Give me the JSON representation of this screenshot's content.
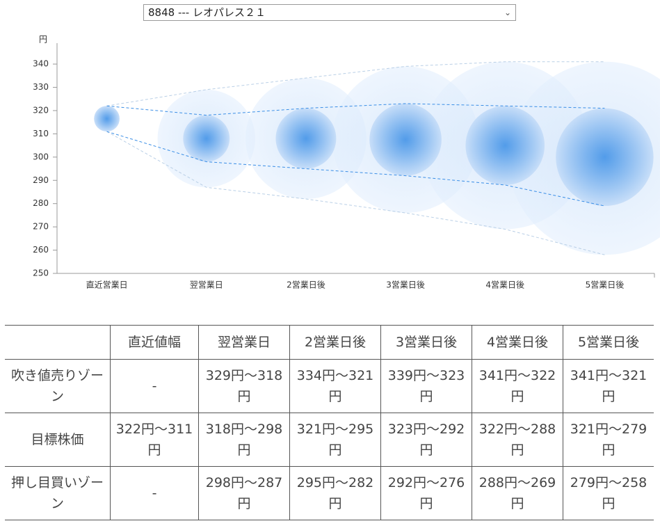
{
  "dropdown": "8848 --- レオパレス２１",
  "chart_data": {
    "type": "bubble",
    "y_unit": "円",
    "color": "#3a8ee6",
    "categories": [
      "直近営業日",
      "翌営業日",
      "2営業日後",
      "3営業日後",
      "4営業日後",
      "5営業日後"
    ],
    "zone_high": [
      322,
      329,
      334,
      339,
      341,
      341
    ],
    "target_high": [
      322,
      318,
      321,
      323,
      322,
      321
    ],
    "target_low": [
      311,
      298,
      295,
      292,
      288,
      279
    ],
    "zone_low": [
      311,
      287,
      282,
      276,
      269,
      258
    ],
    "ylim": [
      250,
      349
    ],
    "yticks": [
      250,
      260,
      270,
      280,
      290,
      300,
      310,
      320,
      330,
      340
    ]
  },
  "table": {
    "columns": [
      "直近値幅",
      "翌営業日",
      "2営業日後",
      "3営業日後",
      "4営業日後",
      "5営業日後"
    ],
    "rows": [
      {
        "label": "吹き値売りゾーン",
        "cells": [
          "-",
          "329円～318円",
          "334円～321円",
          "339円～323円",
          "341円～322円",
          "341円～321円"
        ]
      },
      {
        "label": "目標株価",
        "cells": [
          "322円～311円",
          "318円～298円",
          "321円～295円",
          "323円～292円",
          "322円～288円",
          "321円～279円"
        ]
      },
      {
        "label": "押し目買いゾーン",
        "cells": [
          "-",
          "298円～287円",
          "295円～282円",
          "292円～276円",
          "288円～269円",
          "279円～258円"
        ]
      }
    ]
  }
}
